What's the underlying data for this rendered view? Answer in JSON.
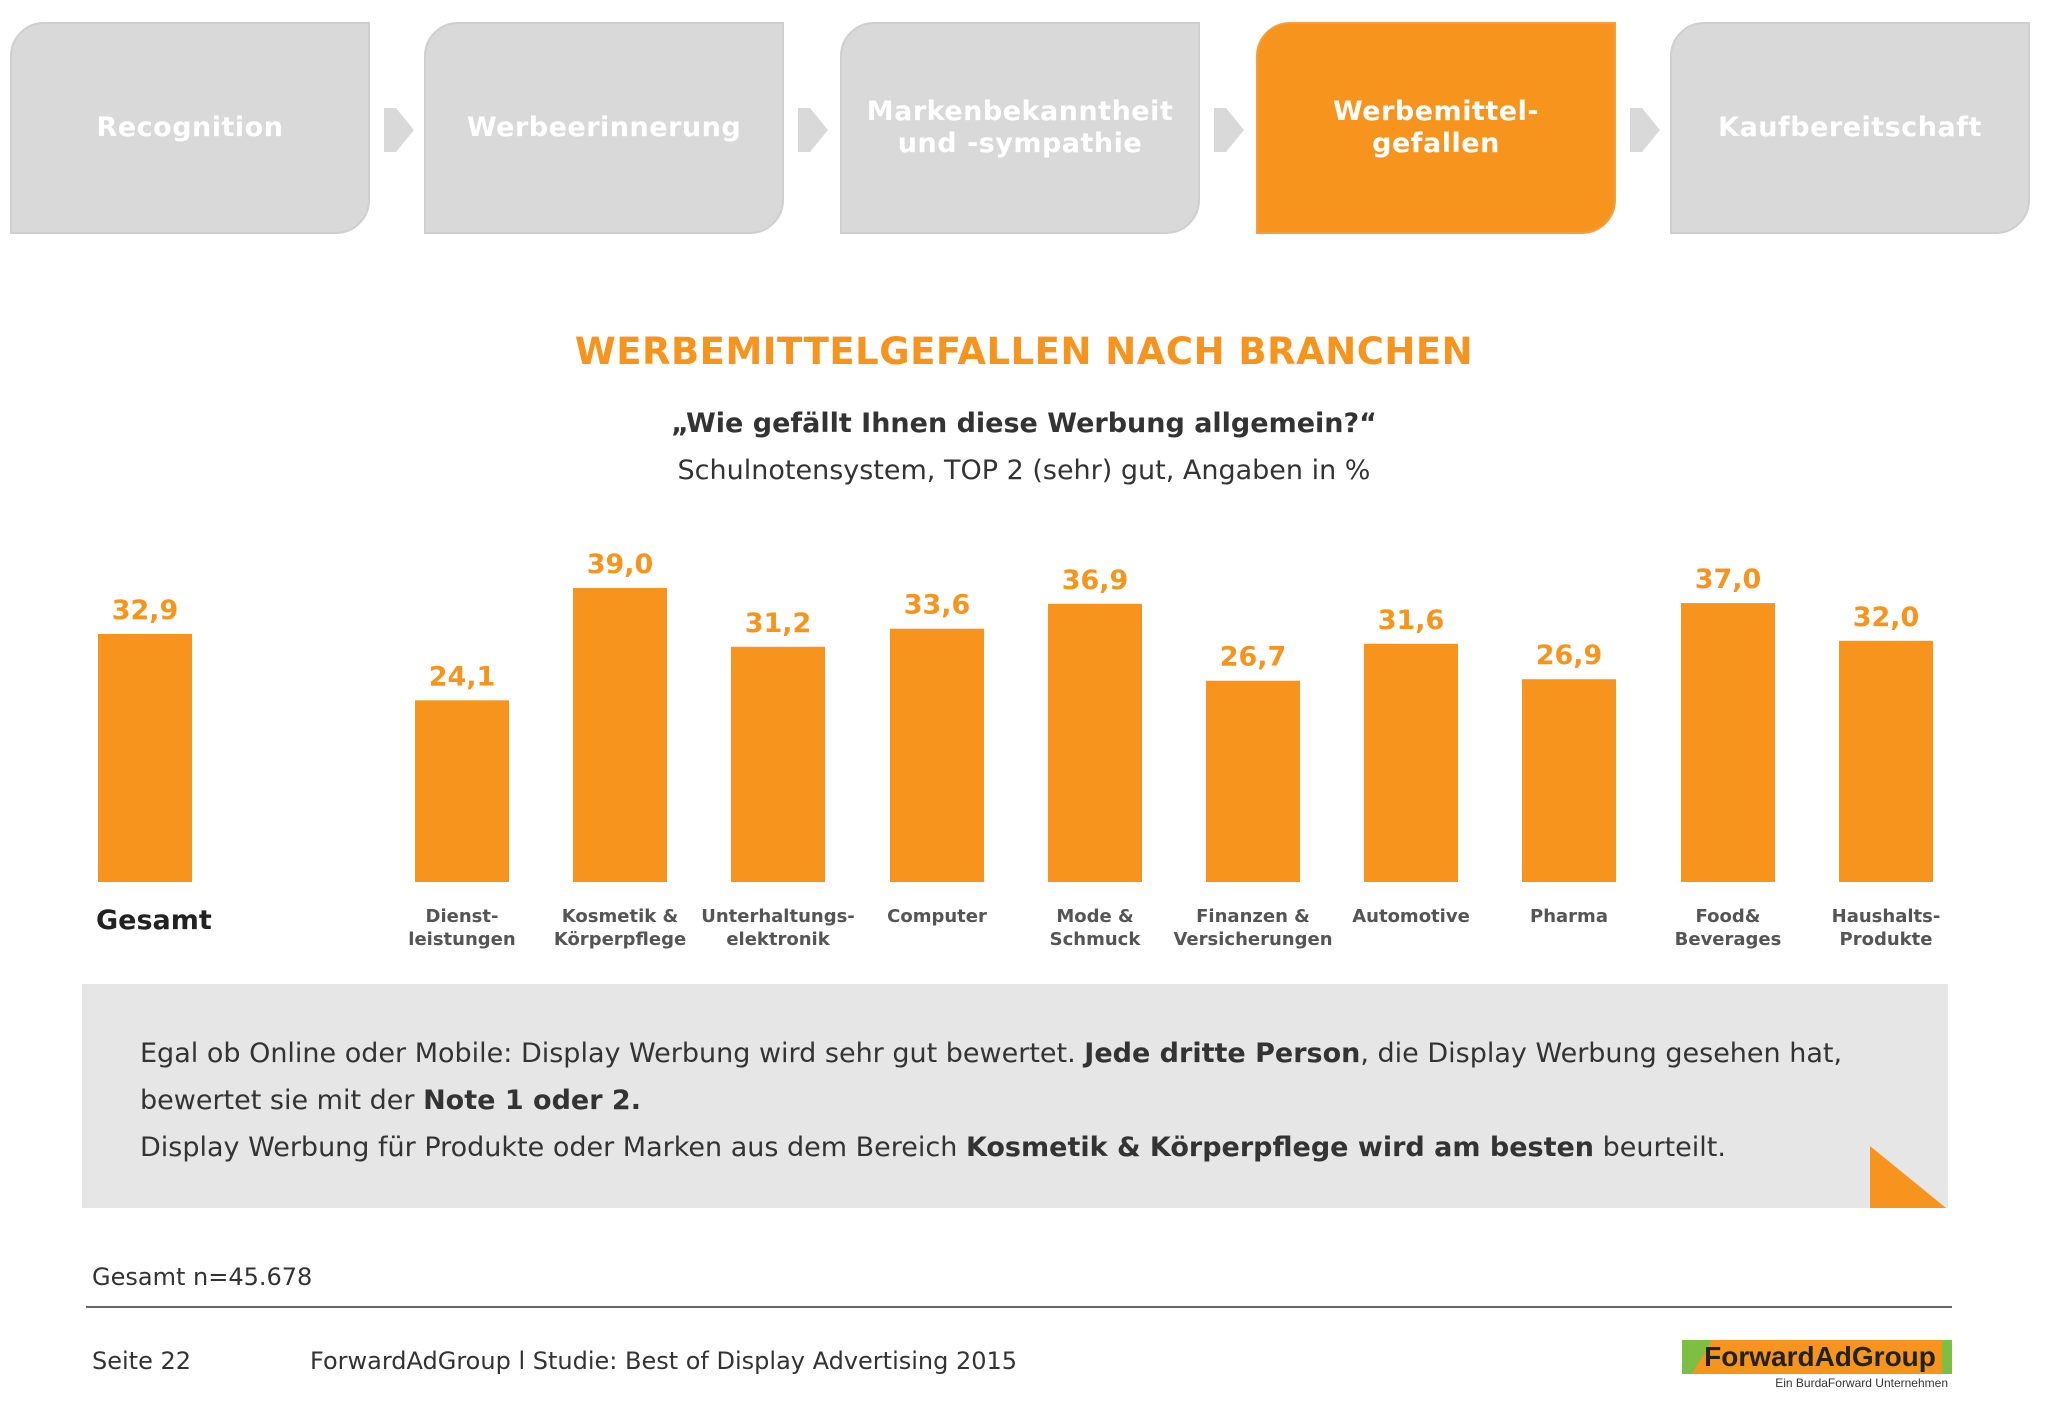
{
  "steps": [
    {
      "label": "Recognition",
      "active": false
    },
    {
      "label": "Werbeerinnerung",
      "active": false
    },
    {
      "label": "Markenbekanntheit\nund -sympathie",
      "active": false
    },
    {
      "label": "Werbemittel-\ngefallen",
      "active": true
    },
    {
      "label": "Kaufbereitschaft",
      "active": false
    }
  ],
  "header": {
    "title": "WERBEMITTELGEFALLEN NACH BRANCHEN",
    "question": "„Wie gefällt Ihnen diese Werbung allgemein?“",
    "note": "Schulnotensystem, TOP 2 (sehr) gut, Angaben in %"
  },
  "colors": {
    "accent": "#f7941d",
    "inactive": "#d9d9d9",
    "box": "#e6e6e6",
    "logo_green": "#7bc043"
  },
  "chart_data": {
    "type": "bar",
    "title": "WERBEMITTELGEFALLEN NACH BRANCHEN",
    "categories": [
      "Gesamt",
      "Dienst-\nleistungen",
      "Kosmetik &\nKörperpflege",
      "Unterhaltungs-\nelektronik",
      "Computer",
      "Mode &\nSchmuck",
      "Finanzen &\nVersicherungen",
      "Automotive",
      "Pharma",
      "Food&\nBeverages",
      "Haushalts-\nProdukte"
    ],
    "value_labels": [
      "32,9",
      "24,1",
      "39,0",
      "31,2",
      "33,6",
      "36,9",
      "26,7",
      "31,6",
      "26,9",
      "37,0",
      "32,0"
    ],
    "values": [
      32.9,
      24.1,
      39.0,
      31.2,
      33.6,
      36.9,
      26.7,
      31.6,
      26.9,
      37.0,
      32.0
    ],
    "ylim": [
      0,
      40
    ],
    "unit": "%",
    "bar_color": "#f7941d"
  },
  "info": {
    "line1_a": "Egal ob Online oder Mobile: Display Werbung wird sehr gut bewertet.  ",
    "line1_b": "Jede dritte Person",
    "line1_c": ", die Display Werbung gesehen hat,",
    "line2_a": "bewertet sie mit der ",
    "line2_b": "Note 1 oder 2.",
    "line3_a": "Display Werbung für Produkte oder Marken aus dem Bereich ",
    "line3_b": "Kosmetik & Körperpflege wird am besten",
    "line3_c": " beurteilt."
  },
  "footer": {
    "sample": "Gesamt n=45.678",
    "page": "Seite 22",
    "study": "ForwardAdGroup  l  Studie: Best of Display Advertising 2015",
    "logo_name": "ForwardAdGroup",
    "logo_sub": "Ein BurdaForward Unternehmen"
  }
}
